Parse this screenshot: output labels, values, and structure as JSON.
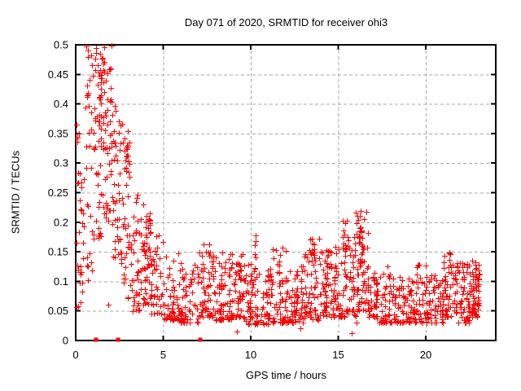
{
  "chart_data": {
    "type": "scatter",
    "title": "Day 071 of 2020, SRMTID for receiver ohi3",
    "xlabel": "GPS time / hours",
    "ylabel": "SRMTID / TECUs",
    "xlim": [
      0,
      24
    ],
    "ylim": [
      0,
      0.5
    ],
    "xticks": {
      "values": [
        0,
        5,
        10,
        15,
        20
      ],
      "labels": [
        "0",
        "5",
        "10",
        "15",
        "20"
      ]
    },
    "yticks": {
      "values": [
        0,
        0.05,
        0.1,
        0.15,
        0.2,
        0.25,
        0.3,
        0.35,
        0.4,
        0.45,
        0.5
      ],
      "labels": [
        "0",
        "0.05",
        "0.1",
        "0.15",
        "0.2",
        "0.25",
        "0.3",
        "0.35",
        "0.4",
        "0.45",
        "0.5"
      ]
    },
    "grid": true,
    "legend": "none",
    "colors": {
      "marker": "#ff0000",
      "grid": "#a8a8a8",
      "axis": "#000000",
      "background": "#ffffff"
    },
    "series": [
      {
        "name": "srmtid-plus-markers",
        "marker": "plus",
        "color": "#ff0000",
        "seed": 71,
        "note": "dense noisy scatter; segments are [x_start_h, x_end_h, n_points, y_min, y_max, low_bias_exponent]",
        "segments": [
          [
            0.02,
            0.5,
            30,
            0.055,
            0.38,
            1.1
          ],
          [
            0.5,
            1.0,
            30,
            0.1,
            0.5,
            1.25
          ],
          [
            1.0,
            1.5,
            46,
            0.17,
            0.5,
            1.2
          ],
          [
            1.5,
            2.1,
            52,
            0.2,
            0.5,
            1.25
          ],
          [
            2.1,
            2.6,
            40,
            0.14,
            0.4,
            1.3
          ],
          [
            2.6,
            3.1,
            40,
            0.07,
            0.37,
            1.2
          ],
          [
            3.1,
            3.7,
            40,
            0.05,
            0.26,
            1.4
          ],
          [
            3.7,
            4.3,
            46,
            0.06,
            0.24,
            1.3
          ],
          [
            4.3,
            5.0,
            40,
            0.045,
            0.2,
            1.7
          ],
          [
            5.0,
            6.0,
            56,
            0.035,
            0.15,
            1.9
          ],
          [
            6.0,
            7.0,
            56,
            0.03,
            0.13,
            1.9
          ],
          [
            7.0,
            8.0,
            60,
            0.04,
            0.17,
            2.0
          ],
          [
            8.0,
            9.0,
            60,
            0.035,
            0.15,
            2.0
          ],
          [
            9.0,
            9.6,
            40,
            0.04,
            0.15,
            1.8
          ],
          [
            9.6,
            11.0,
            82,
            0.028,
            0.13,
            1.8
          ],
          [
            11.0,
            12.0,
            62,
            0.03,
            0.16,
            2.0
          ],
          [
            12.0,
            13.0,
            62,
            0.03,
            0.13,
            1.8
          ],
          [
            13.0,
            14.0,
            62,
            0.035,
            0.18,
            2.0
          ],
          [
            14.0,
            15.0,
            66,
            0.04,
            0.16,
            1.8
          ],
          [
            15.0,
            15.6,
            40,
            0.04,
            0.21,
            1.8
          ],
          [
            15.6,
            16.0,
            30,
            0.04,
            0.18,
            1.7
          ],
          [
            16.0,
            16.7,
            56,
            0.05,
            0.22,
            1.3
          ],
          [
            16.7,
            17.2,
            36,
            0.04,
            0.13,
            1.7
          ],
          [
            17.2,
            19.0,
            96,
            0.03,
            0.115,
            1.7
          ],
          [
            19.0,
            20.0,
            62,
            0.03,
            0.13,
            1.9
          ],
          [
            20.0,
            21.0,
            62,
            0.03,
            0.11,
            1.7
          ],
          [
            21.0,
            21.7,
            46,
            0.04,
            0.15,
            1.8
          ],
          [
            21.7,
            22.5,
            56,
            0.03,
            0.135,
            1.8
          ],
          [
            22.5,
            23.05,
            58,
            0.04,
            0.135,
            1.4
          ]
        ],
        "clusters": [
          [
            1.3,
            1.55,
            12,
            0.37,
            0.47,
            1
          ],
          [
            2.85,
            3.05,
            8,
            0.27,
            0.33,
            1
          ],
          [
            3.95,
            4.25,
            10,
            0.15,
            0.22,
            1
          ],
          [
            7.55,
            7.95,
            9,
            0.11,
            0.17,
            1
          ],
          [
            8.3,
            8.45,
            5,
            0.1,
            0.15,
            1
          ],
          [
            8.8,
            8.95,
            5,
            0.1,
            0.15,
            1
          ],
          [
            9.25,
            9.45,
            6,
            0.11,
            0.15,
            1
          ],
          [
            10.15,
            10.3,
            6,
            0.12,
            0.185,
            1
          ],
          [
            11.4,
            11.65,
            7,
            0.11,
            0.155,
            1
          ],
          [
            12.85,
            13.0,
            5,
            0.1,
            0.14,
            1
          ],
          [
            13.4,
            13.65,
            8,
            0.12,
            0.178,
            1
          ],
          [
            14.35,
            14.9,
            10,
            0.09,
            0.15,
            1
          ],
          [
            15.25,
            15.5,
            8,
            0.13,
            0.21,
            1
          ],
          [
            16.15,
            16.5,
            14,
            0.11,
            0.22,
            1
          ],
          [
            17.8,
            17.95,
            4,
            0.1,
            0.13,
            1
          ],
          [
            21.25,
            21.45,
            5,
            0.1,
            0.148,
            1
          ],
          [
            22.85,
            23.05,
            7,
            0.09,
            0.135,
            1
          ]
        ],
        "outliers": [
          [
            0.05,
            0.365
          ],
          [
            0.1,
            0.345
          ],
          [
            0.15,
            0.058
          ],
          [
            0.3,
            0.065
          ],
          [
            0.62,
            0.497
          ],
          [
            0.7,
            0.48
          ],
          [
            1.15,
            0.495
          ],
          [
            1.6,
            0.468
          ],
          [
            1.65,
            0.455
          ],
          [
            1.7,
            0.44
          ],
          [
            1.86,
            0.06
          ],
          [
            9.2,
            0.015
          ],
          [
            12.85,
            0.02
          ],
          [
            15.75,
            0.012
          ],
          [
            16.05,
            0.03
          ],
          [
            19.6,
            0.128
          ],
          [
            21.35,
            0.148
          ],
          [
            22.1,
            0.131
          ],
          [
            22.2,
            0.128
          ]
        ]
      },
      {
        "name": "axis-flag-squares",
        "marker": "square",
        "color": "#ff0000",
        "points": [
          [
            1.15,
            0
          ],
          [
            2.4,
            0
          ],
          [
            7.12,
            0
          ]
        ]
      }
    ]
  }
}
